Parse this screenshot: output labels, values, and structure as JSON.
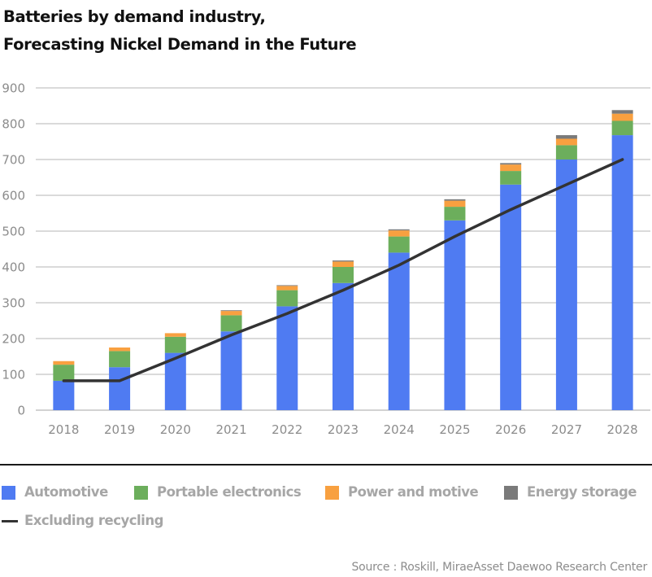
{
  "title_line1": "Batteries by demand industry,",
  "title_line2": "Forecasting Nickel Demand in the Future",
  "source": "Source : Roskill, MiraeAsset Daewoo Research Center",
  "colors": {
    "automotive": "#4f7bf2",
    "portable_electronics": "#6cae5c",
    "power_and_motive": "#f8a040",
    "energy_storage": "#7a7a7a",
    "excluding_recycling": "#333333",
    "grid": "#c4c4c4"
  },
  "chart_data": {
    "type": "bar",
    "stacked": true,
    "title": "Batteries by demand industry, Forecasting Nickel Demand in the Future",
    "categories": [
      "2018",
      "2019",
      "2020",
      "2021",
      "2022",
      "2023",
      "2024",
      "2025",
      "2026",
      "2027",
      "2028"
    ],
    "ylim": [
      0,
      900
    ],
    "yticks": [
      0,
      100,
      200,
      300,
      400,
      500,
      600,
      700,
      800,
      900
    ],
    "grid": true,
    "legend_position": "bottom",
    "series": [
      {
        "name": "Automotive",
        "color_key": "automotive",
        "values": [
          82,
          120,
          160,
          220,
          290,
          355,
          440,
          530,
          630,
          700,
          768
        ]
      },
      {
        "name": "Portable electronics",
        "color_key": "portable_electronics",
        "values": [
          45,
          45,
          45,
          45,
          45,
          45,
          45,
          38,
          38,
          40,
          40
        ]
      },
      {
        "name": "Power and motive",
        "color_key": "power_and_motive",
        "values": [
          10,
          10,
          10,
          12,
          12,
          15,
          17,
          17,
          18,
          18,
          20
        ]
      },
      {
        "name": "Energy storage",
        "color_key": "energy_storage",
        "values": [
          0,
          0,
          0,
          2,
          2,
          3,
          3,
          4,
          4,
          10,
          10
        ]
      }
    ],
    "line_series": [
      {
        "name": "Excluding recycling",
        "color_key": "excluding_recycling",
        "values": [
          82,
          82,
          145,
          210,
          270,
          335,
          405,
          485,
          560,
          630,
          700
        ]
      }
    ]
  }
}
